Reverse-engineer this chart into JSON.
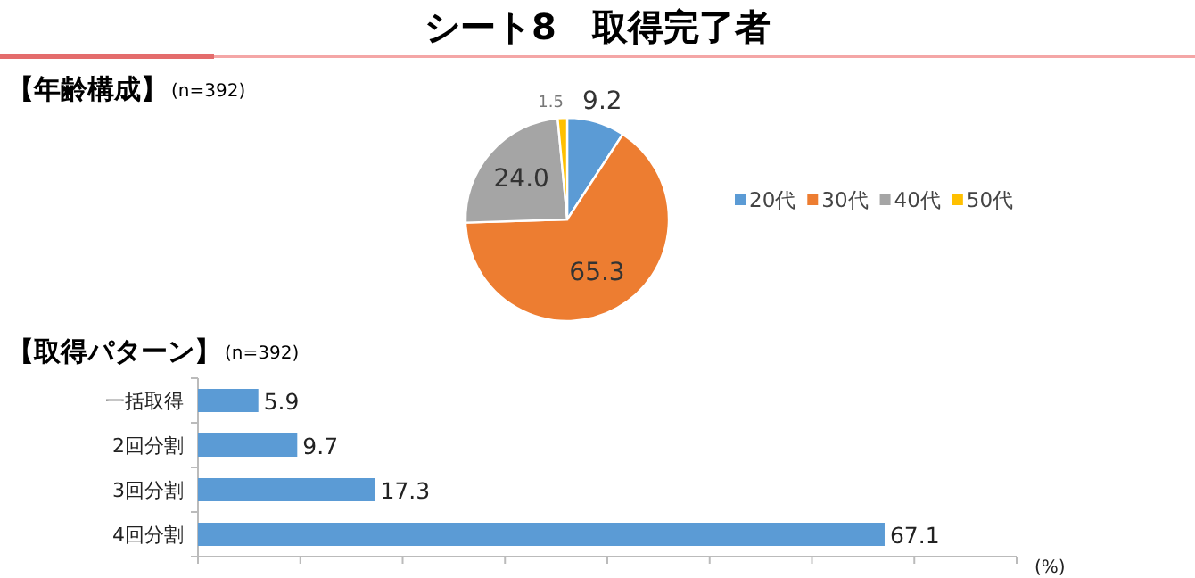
{
  "chart_data": [
    {
      "type": "pie",
      "title": "シート8　取得完了者",
      "subtitle": "【年齢構成】",
      "annotations": [
        "(n=392)"
      ],
      "categories": [
        "20代",
        "30代",
        "40代",
        "50代"
      ],
      "values": [
        9.2,
        65.3,
        24.0,
        1.5
      ],
      "colors": [
        "#5b9bd5",
        "#ed7d31",
        "#a5a5a5",
        "#ffc000"
      ],
      "value_labels": [
        "9.2",
        "65.3",
        "24.0",
        "1.5"
      ],
      "legend": "right"
    },
    {
      "type": "bar",
      "orientation": "horizontal",
      "title": "【取得パターン】",
      "annotations": [
        "(n=392)",
        "(%)"
      ],
      "categories": [
        "一括取得",
        "2回分割",
        "3回分割",
        "4回分割"
      ],
      "values": [
        5.9,
        9.7,
        17.3,
        67.1
      ],
      "color": "#5b9bd5",
      "data_labels": true,
      "xlim": [
        0,
        80
      ],
      "xticks": [
        {
          "value": 0,
          "label": null
        },
        {
          "value": 10,
          "label": null
        },
        {
          "value": 20,
          "label": null
        },
        {
          "value": 30,
          "label": null
        },
        {
          "value": 40,
          "label": null
        },
        {
          "value": 50,
          "label": null
        },
        {
          "value": 60,
          "label": null
        },
        {
          "value": 70,
          "label": null
        },
        {
          "value": 80,
          "label": null
        }
      ],
      "tick_labels": "y",
      "grid": false
    }
  ]
}
